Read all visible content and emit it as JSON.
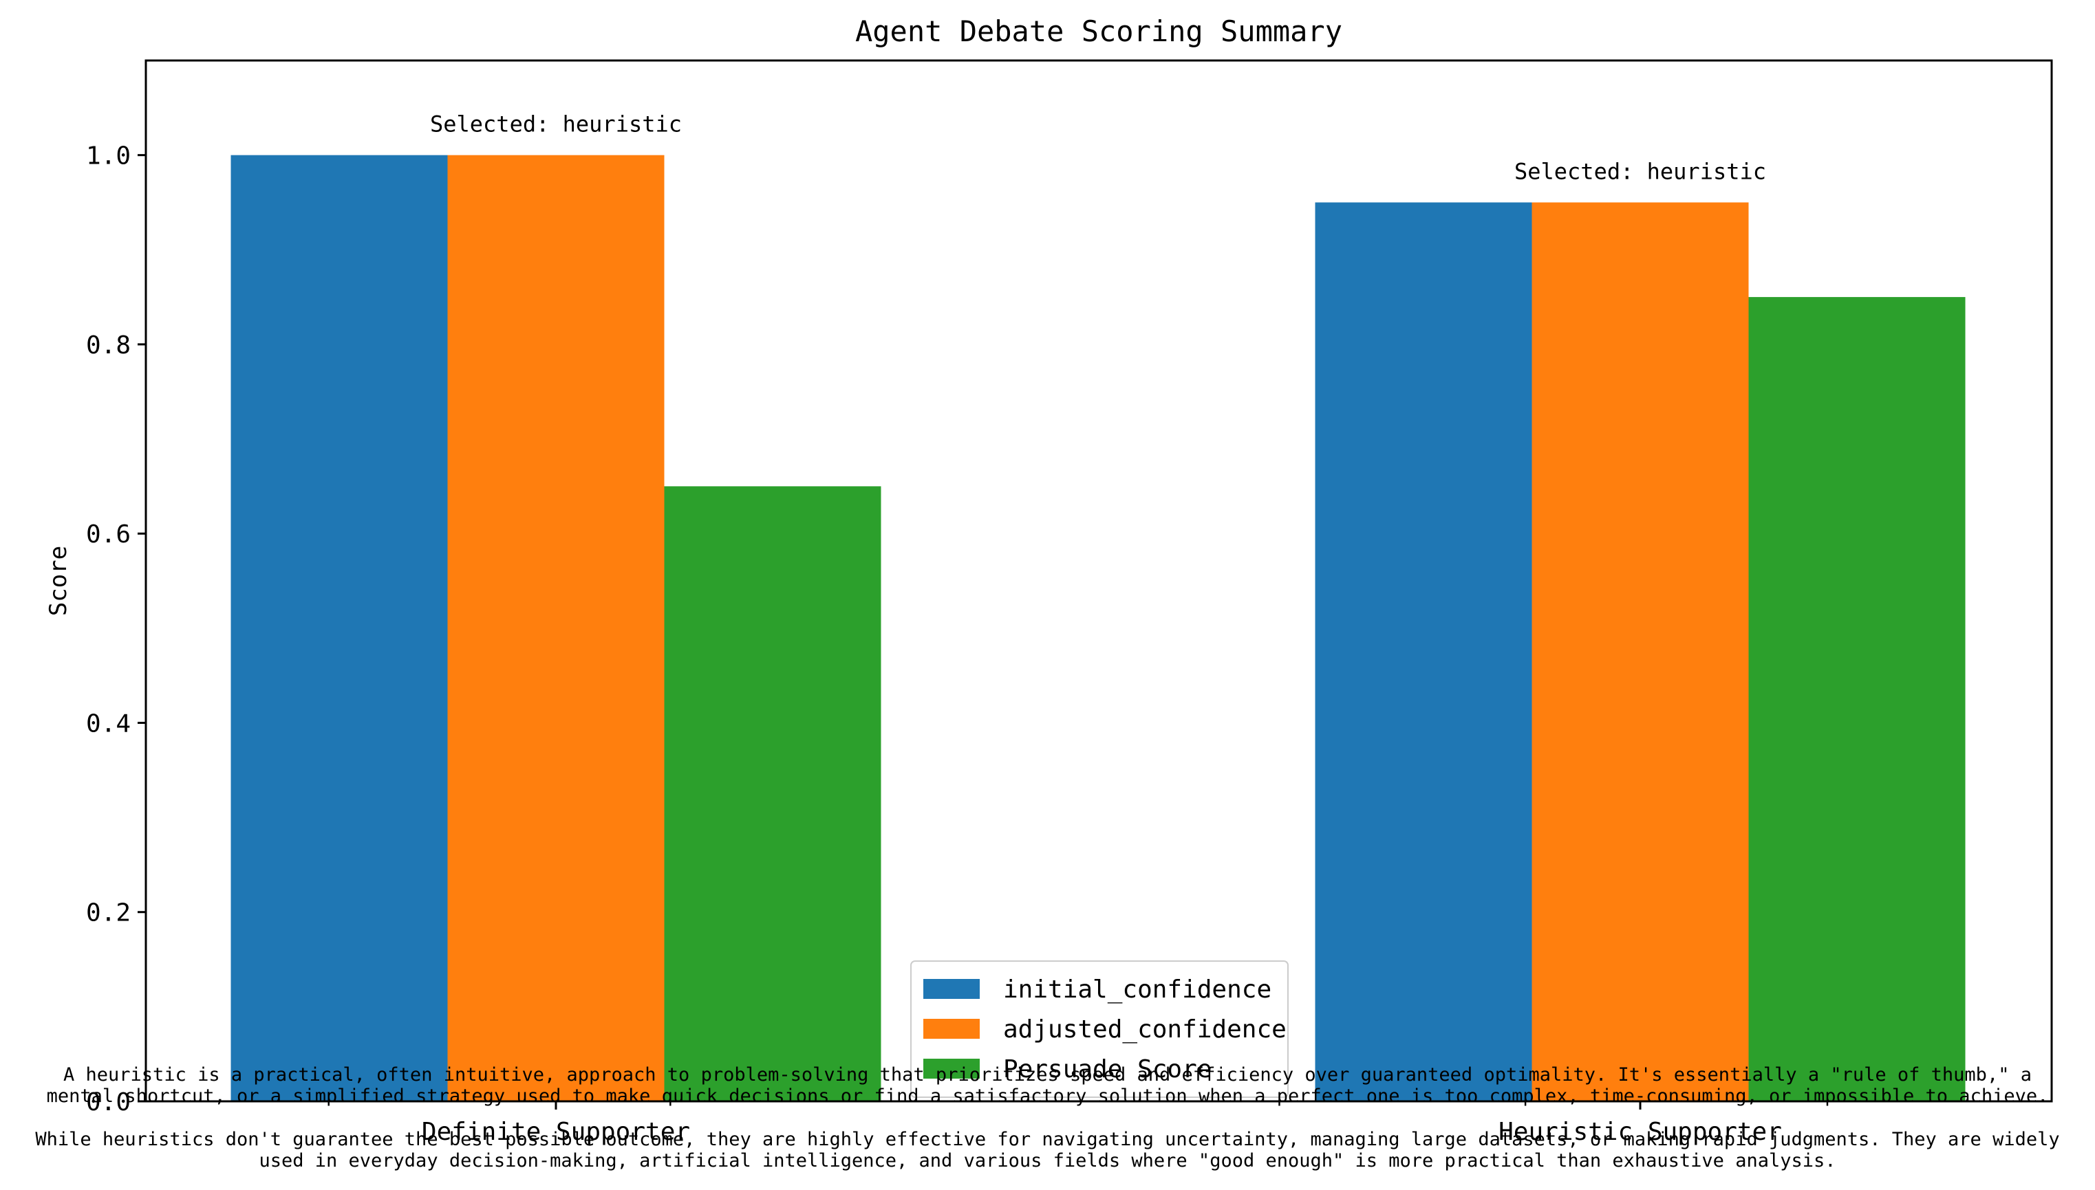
{
  "chart_data": {
    "type": "bar",
    "title": "Agent Debate Scoring Summary",
    "xlabel": "",
    "ylabel": "Score",
    "ylim": [
      0,
      1.1
    ],
    "yticks": [
      "0.0",
      "0.2",
      "0.4",
      "0.6",
      "0.8",
      "1.0"
    ],
    "categories": [
      "Definite Supporter",
      "Heuristic Supporter"
    ],
    "series": [
      {
        "name": "initial_confidence",
        "values": [
          1.0,
          0.95
        ],
        "color": "#1f77b4"
      },
      {
        "name": "adjusted_confidence",
        "values": [
          1.0,
          0.95
        ],
        "color": "#ff7f0e"
      },
      {
        "name": "Persuade Score",
        "values": [
          0.65,
          0.85
        ],
        "color": "#2ca02c"
      }
    ],
    "annotations": [
      "Selected: heuristic",
      "Selected: heuristic"
    ],
    "legend_position": "lower-center",
    "grid": false
  },
  "footnote": {
    "paragraph1": "A heuristic is a practical, often intuitive, approach to problem-solving that prioritizes speed and efficiency over guaranteed optimality. It's essentially a \"rule of thumb,\" a\nmental shortcut, or a simplified strategy used to make quick decisions or find a satisfactory solution when a perfect one is too complex, time-consuming, or impossible to achieve.",
    "paragraph2": "While heuristics don't guarantee the best possible outcome, they are highly effective for navigating uncertainty, managing large datasets, or making rapid judgments. They are widely\nused in everyday decision-making, artificial intelligence, and various fields where \"good enough\" is more practical than exhaustive analysis."
  }
}
